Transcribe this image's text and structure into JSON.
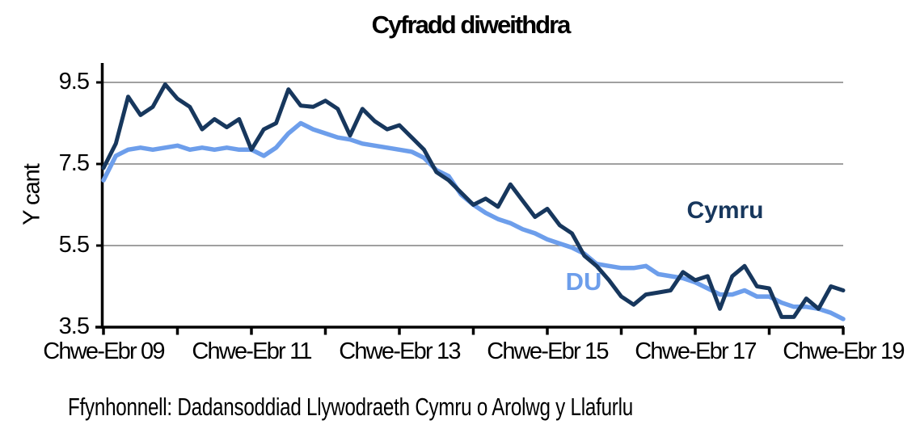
{
  "page": {
    "background": "#ffffff"
  },
  "footer": "Ffynhonnell: Dadansoddiad Llywodraeth Cymru o Arolwg y Llafurlu",
  "chart_data": {
    "type": "line",
    "title": "Cyfradd diweithdra",
    "ylabel": "Y cant",
    "ylim": [
      3.5,
      9.95
    ],
    "yticks": [
      9.5,
      7.5,
      5.5,
      3.5
    ],
    "gridlines_at": [
      9.5,
      7.5,
      5.5
    ],
    "grid_color": "#808080",
    "axis_color": "#000000",
    "x_minor_tick_count": 11,
    "xtick_labels": [
      "Chwe-Ebr 09",
      "Chwe-Ebr 11",
      "Chwe-Ebr 13",
      "Chwe-Ebr 15",
      "Chwe-Ebr 17",
      "Chwe-Ebr 19"
    ],
    "x_description": "Rolling 3-month periods sampled every 2 months from Chwe-Ebr 2009 to Chwe-Ebr 2019",
    "legend_position": "inline-labels",
    "series": [
      {
        "name": "DU",
        "color": "#6D9EEB",
        "values": [
          7.1,
          7.7,
          7.85,
          7.9,
          7.85,
          7.9,
          7.95,
          7.85,
          7.9,
          7.85,
          7.9,
          7.85,
          7.85,
          7.7,
          7.9,
          8.25,
          8.5,
          8.35,
          8.25,
          8.15,
          8.1,
          8.0,
          7.95,
          7.9,
          7.85,
          7.8,
          7.65,
          7.35,
          7.2,
          6.75,
          6.5,
          6.3,
          6.15,
          6.05,
          5.9,
          5.8,
          5.65,
          5.55,
          5.45,
          5.3,
          5.05,
          5.0,
          4.95,
          4.95,
          5.0,
          4.8,
          4.75,
          4.7,
          4.6,
          4.45,
          4.3,
          4.3,
          4.4,
          4.25,
          4.25,
          4.1,
          4.0,
          4.0,
          3.95,
          3.85,
          3.7
        ]
      },
      {
        "name": "Cymru",
        "color": "#17375D",
        "values": [
          7.4,
          8.0,
          9.15,
          8.7,
          8.9,
          9.45,
          9.1,
          8.9,
          8.35,
          8.6,
          8.4,
          8.6,
          7.85,
          8.35,
          8.5,
          9.33,
          8.93,
          8.9,
          9.05,
          8.85,
          8.2,
          8.85,
          8.55,
          8.35,
          8.45,
          8.15,
          7.85,
          7.3,
          7.1,
          6.8,
          6.5,
          6.65,
          6.45,
          7.0,
          6.6,
          6.2,
          6.4,
          6.0,
          5.8,
          5.25,
          5.0,
          4.65,
          4.25,
          4.05,
          4.3,
          4.35,
          4.4,
          4.85,
          4.65,
          4.75,
          3.95,
          4.75,
          5.0,
          4.5,
          4.45,
          3.75,
          3.75,
          4.2,
          3.95,
          4.5,
          4.4
        ]
      }
    ]
  }
}
